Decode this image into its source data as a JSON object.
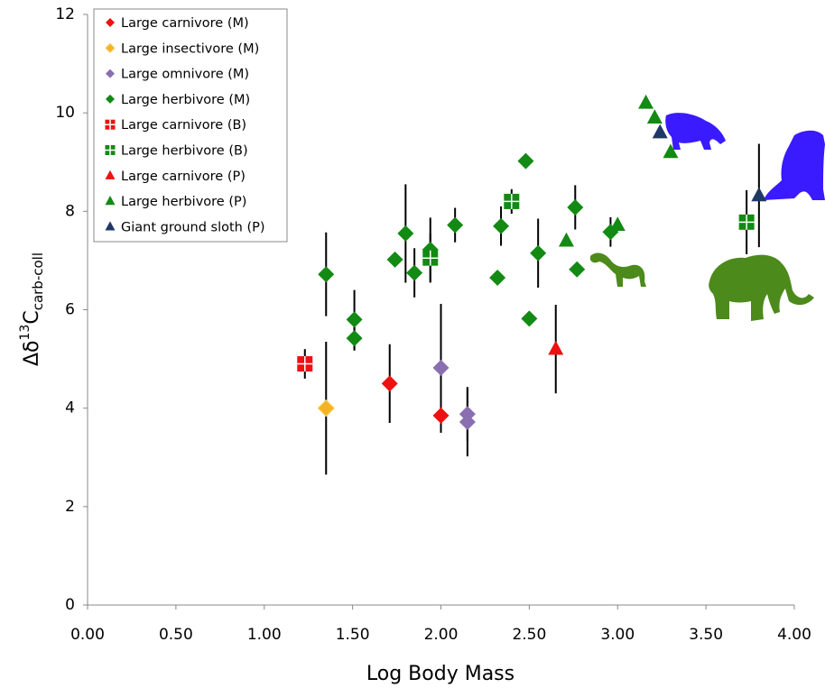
{
  "chart_data": {
    "type": "scatter",
    "xlabel": "Log Body Mass",
    "ylabel": {
      "prefix": "Δδ",
      "sup": "13",
      "base": "C",
      "sub": "carb-coll"
    },
    "xlim": [
      0,
      4
    ],
    "ylim": [
      0,
      12
    ],
    "xticks": [
      {
        "value": 0,
        "label": "0.00"
      },
      {
        "value": 0.5,
        "label": "0.50"
      },
      {
        "value": 1,
        "label": "1.00"
      },
      {
        "value": 1.5,
        "label": "1.50"
      },
      {
        "value": 2,
        "label": "2.00"
      },
      {
        "value": 2.5,
        "label": "2.50"
      },
      {
        "value": 3,
        "label": "3.00"
      },
      {
        "value": 3.5,
        "label": "3.50"
      },
      {
        "value": 4,
        "label": "4.00"
      }
    ],
    "yticks": [
      0,
      2,
      4,
      6,
      8,
      10,
      12
    ],
    "legend": "top-left",
    "series": [
      {
        "name": "Large carnivore (M)",
        "color": "#ee1111",
        "marker": "diamond",
        "x": [
          1.71,
          2.0
        ],
        "values": [
          4.5,
          3.85
        ],
        "errors": [
          0.8,
          0.35
        ]
      },
      {
        "name": "Large insectivore (M)",
        "color": "#f5b324",
        "marker": "diamond",
        "x": [
          1.35
        ],
        "values": [
          4.0
        ],
        "errors": [
          1.35
        ]
      },
      {
        "name": "Large omnivore (M)",
        "color": "#8a6fb0",
        "marker": "diamond",
        "x": [
          2.0,
          2.15,
          2.15
        ],
        "values": [
          4.82,
          3.88,
          3.72
        ],
        "errors": [
          1.3,
          0.55,
          0.7
        ]
      },
      {
        "name": "Large herbivore (M)",
        "color": "#138a13",
        "marker": "diamond",
        "x": [
          1.35,
          1.51,
          1.51,
          1.74,
          1.8,
          1.85,
          1.94,
          2.08,
          2.32,
          2.34,
          2.48,
          2.5,
          2.55,
          2.76,
          2.77,
          2.96
        ],
        "values": [
          6.72,
          5.8,
          5.42,
          7.02,
          7.55,
          6.75,
          7.22,
          7.72,
          6.65,
          7.7,
          9.02,
          5.82,
          7.15,
          8.08,
          6.82,
          7.58
        ],
        "errors": [
          0.85,
          0.6,
          0.25,
          null,
          1.0,
          0.5,
          0.65,
          0.35,
          null,
          0.4,
          null,
          null,
          0.7,
          0.45,
          null,
          0.3
        ]
      },
      {
        "name": "Large carnivore (B)",
        "color": "#ee1111",
        "marker": "square-plus",
        "x": [
          1.23
        ],
        "values": [
          4.9
        ],
        "errors": [
          0.3
        ]
      },
      {
        "name": "Large herbivore (B)",
        "color": "#138a13",
        "marker": "square-plus",
        "x": [
          1.94,
          2.4,
          3.73
        ],
        "values": [
          7.05,
          8.2,
          7.78
        ],
        "errors": [
          0.5,
          0.25,
          0.65
        ]
      },
      {
        "name": "Large carnivore (P)",
        "color": "#ee1111",
        "marker": "triangle",
        "x": [
          2.65
        ],
        "values": [
          5.2
        ],
        "errors": [
          0.9
        ]
      },
      {
        "name": "Large herbivore (P)",
        "color": "#138a13",
        "marker": "triangle",
        "x": [
          2.71,
          3.0,
          3.16,
          3.21,
          3.3
        ],
        "values": [
          7.4,
          7.72,
          10.2,
          9.9,
          9.2
        ],
        "errors": [
          null,
          null,
          null,
          null,
          null
        ]
      },
      {
        "name": "Giant ground sloth (P)",
        "color": "#1f3864",
        "marker": "triangle",
        "x": [
          3.24,
          3.8
        ],
        "values": [
          9.6,
          8.32
        ],
        "errors": [
          null,
          1.05
        ]
      }
    ]
  }
}
